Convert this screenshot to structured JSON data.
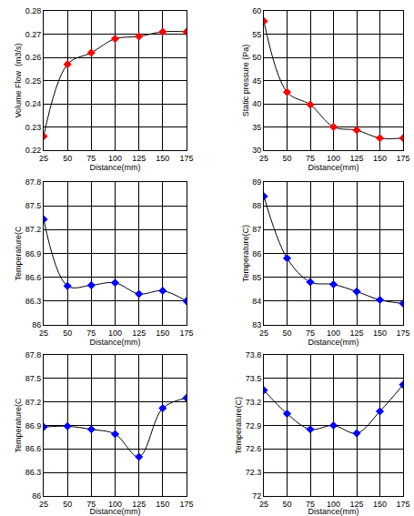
{
  "chart_data": [
    {
      "type": "line",
      "xlabel": "Distance(mm)",
      "ylabel": "Volume Flow  (m3/s)",
      "x": [
        25,
        50,
        75,
        100,
        125,
        150,
        175
      ],
      "values": [
        0.226,
        0.257,
        0.262,
        0.268,
        0.269,
        0.271,
        0.271
      ],
      "color": "#ff0000",
      "marker": "diamond",
      "line_style": "solid",
      "xlim": [
        25,
        175
      ],
      "xticks": [
        25,
        50,
        75,
        100,
        125,
        150,
        175
      ],
      "ylim": [
        0.22,
        0.28
      ],
      "yticks": [
        0.22,
        0.23,
        0.24,
        0.25,
        0.26,
        0.27,
        0.28
      ],
      "grid": true
    },
    {
      "type": "line",
      "xlabel": "Distance(mm)",
      "ylabel": "Static pressure (Pa)",
      "x": [
        25,
        50,
        75,
        100,
        125,
        150,
        175
      ],
      "values": [
        57.8,
        42.5,
        39.8,
        35,
        34.3,
        32.6,
        32.6
      ],
      "color": "#ff0000",
      "marker": "diamond",
      "line_style": "solid",
      "xlim": [
        25,
        175
      ],
      "xticks": [
        25,
        50,
        75,
        100,
        125,
        150,
        175
      ],
      "ylim": [
        30,
        60
      ],
      "yticks": [
        30,
        35,
        40,
        45,
        50,
        55,
        60
      ],
      "grid": true
    },
    {
      "type": "line",
      "xlabel": "Distance(mm)",
      "ylabel": "Temperature(C",
      "x": [
        25,
        50,
        75,
        100,
        125,
        150,
        175
      ],
      "values": [
        87.33,
        86.49,
        86.5,
        86.53,
        86.39,
        86.43,
        86.3
      ],
      "color": "#0000ff",
      "marker": "diamond",
      "line_style": "solid",
      "xlim": [
        25,
        175
      ],
      "xticks": [
        25,
        50,
        75,
        100,
        125,
        150,
        175
      ],
      "ylim": [
        86,
        87.8
      ],
      "yticks": [
        86,
        86.3,
        86.6,
        86.9,
        87.2,
        87.5,
        87.8
      ],
      "grid": true
    },
    {
      "type": "line",
      "xlabel": "Distance(mm)",
      "ylabel": "Temperature(C)",
      "x": [
        25,
        50,
        75,
        100,
        125,
        150,
        175
      ],
      "values": [
        88.4,
        85.8,
        84.8,
        84.7,
        84.4,
        84.05,
        83.9
      ],
      "color": "#0000ff",
      "marker": "diamond",
      "line_style": "solid",
      "xlim": [
        25,
        175
      ],
      "xticks": [
        25,
        50,
        75,
        100,
        125,
        150,
        175
      ],
      "ylim": [
        83,
        89
      ],
      "yticks": [
        83,
        84,
        85,
        86,
        87,
        88,
        89
      ],
      "grid": true
    },
    {
      "type": "line",
      "xlabel": "Distance(mm)",
      "ylabel": "Temperature(C",
      "x": [
        25,
        50,
        75,
        100,
        125,
        150,
        175
      ],
      "values": [
        86.88,
        86.89,
        86.85,
        86.79,
        86.5,
        87.12,
        87.25
      ],
      "color": "#0000ff",
      "marker": "diamond",
      "line_style": "solid",
      "xlim": [
        25,
        175
      ],
      "xticks": [
        25,
        50,
        75,
        100,
        125,
        150,
        175
      ],
      "ylim": [
        86,
        87.8
      ],
      "yticks": [
        86,
        86.3,
        86.6,
        86.9,
        87.2,
        87.5,
        87.8
      ],
      "grid": true
    },
    {
      "type": "line",
      "xlabel": "Distance(mm)",
      "ylabel": "Temperature(C)",
      "x": [
        25,
        50,
        75,
        100,
        125,
        150,
        175
      ],
      "values": [
        73.35,
        73.05,
        72.85,
        72.9,
        72.8,
        73.08,
        73.42
      ],
      "color": "#0000ff",
      "marker": "diamond",
      "line_style": "solid",
      "xlim": [
        25,
        175
      ],
      "xticks": [
        25,
        50,
        75,
        100,
        125,
        150,
        175
      ],
      "ylim": [
        72,
        73.8
      ],
      "yticks": [
        72,
        72.3,
        72.6,
        72.9,
        73.2,
        73.5,
        73.8
      ],
      "grid": true
    }
  ]
}
